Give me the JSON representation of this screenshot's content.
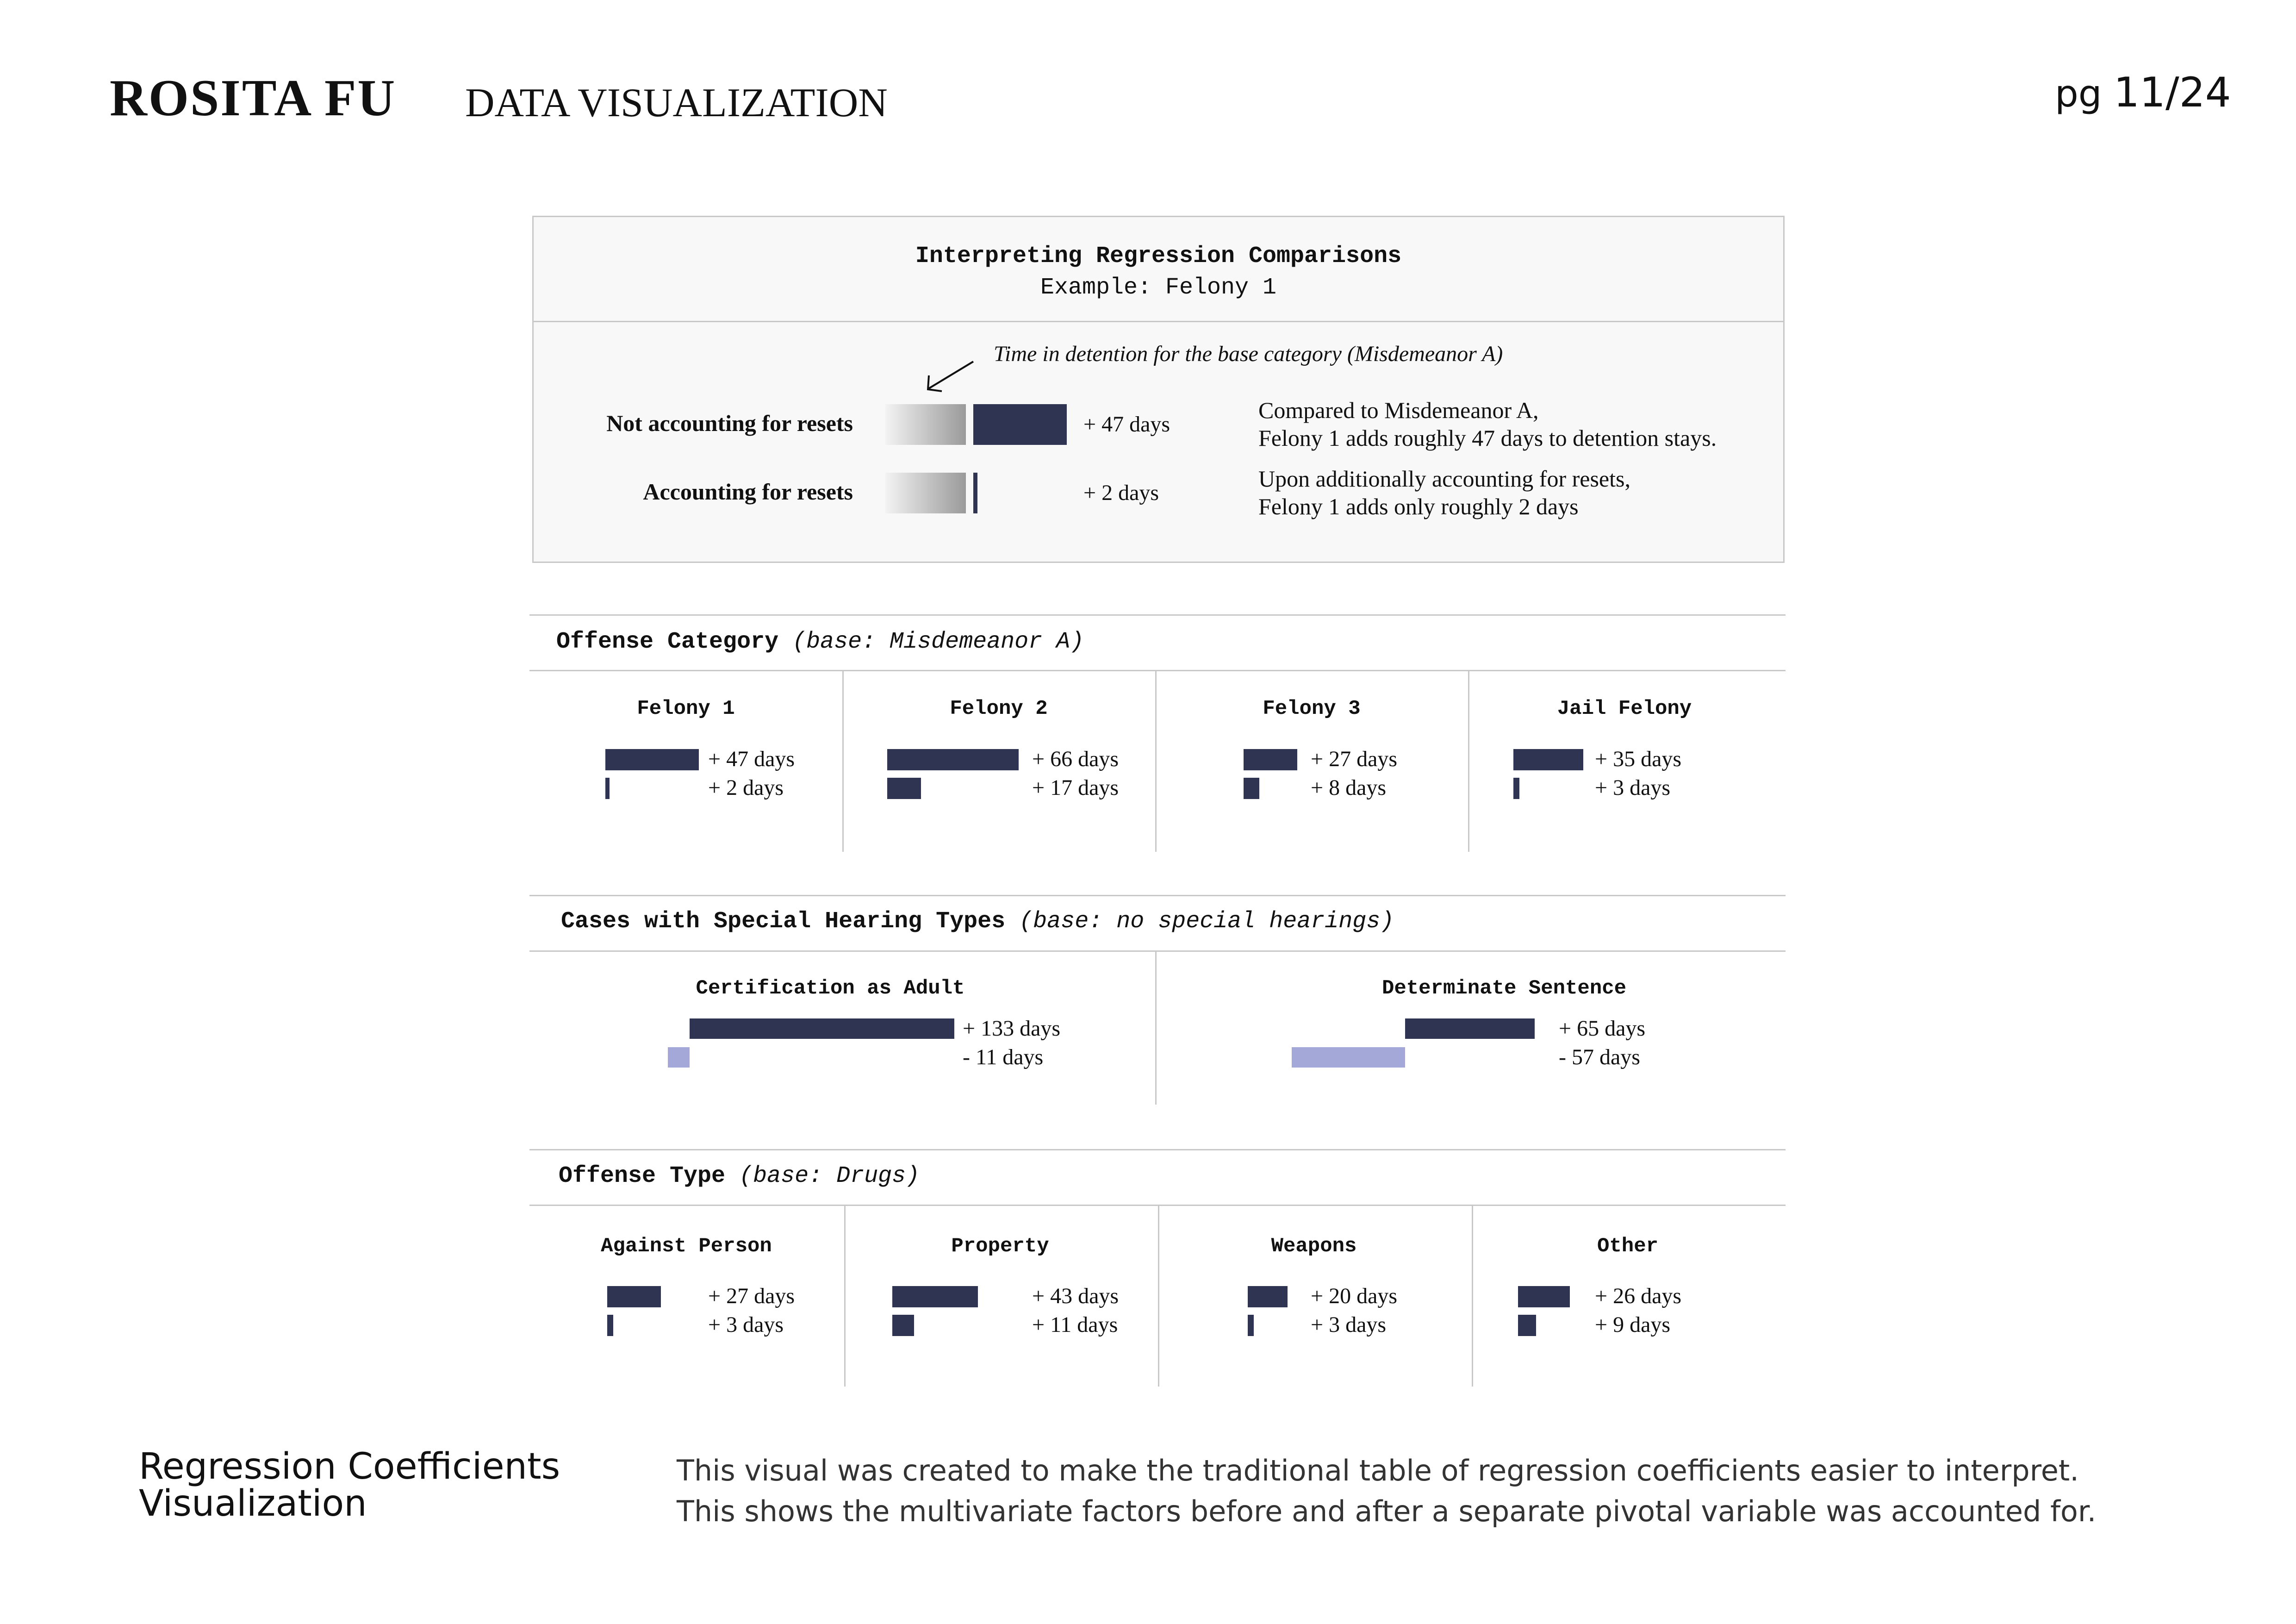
{
  "header": {
    "author": "ROSITA FU",
    "subject": "DATA VISUALIZATION",
    "page_prefix": "pg",
    "page_number": "11/24"
  },
  "explanation": {
    "title": "Interpreting Regression Comparisons",
    "example": "Example: Felony 1",
    "annotation": "Time in detention for the base category (Misdemeanor A)",
    "rows": [
      {
        "label": "Not accounting for resets",
        "value_label": "+ 47 days",
        "value": 47,
        "note_line1": "Compared to Misdemeanor A,",
        "note_line2": "Felony 1 adds roughly 47 days to detention stays."
      },
      {
        "label": "Accounting for resets",
        "value_label": "+ 2 days",
        "value": 2,
        "note_line1": "Upon additionally accounting for resets,",
        "note_line2": "Felony 1 adds only roughly 2 days"
      }
    ]
  },
  "sections": {
    "offense_category": {
      "title": "Offense Category",
      "base": "(base: Misdemeanor A)"
    },
    "special_hearing": {
      "title": "Cases with Special Hearing Types",
      "base": "(base: no special hearings)"
    },
    "offense_type": {
      "title": "Offense Type",
      "base": "(base: Drugs)"
    }
  },
  "chart_data": [
    {
      "type": "bar",
      "title": "Offense Category",
      "base": "Misdemeanor A",
      "categories": [
        "Felony 1",
        "Felony 2",
        "Felony 3",
        "Jail Felony"
      ],
      "series": [
        {
          "values": [
            47,
            66,
            27,
            35
          ],
          "labels": [
            "+ 47 days",
            "+ 66 days",
            "+ 27 days",
            "+ 35 days"
          ]
        },
        {
          "values": [
            2,
            17,
            8,
            3
          ],
          "labels": [
            "+  2 days",
            "+ 17 days",
            "+ 8 days",
            "+ 3 days"
          ]
        }
      ]
    },
    {
      "type": "bar",
      "title": "Cases with Special Hearing Types",
      "base": "no special hearings",
      "categories": [
        "Certification as Adult",
        "Determinate Sentence"
      ],
      "series": [
        {
          "values": [
            133,
            65
          ],
          "labels": [
            "+ 133 days",
            "+ 65 days"
          ]
        },
        {
          "values": [
            -11,
            -57
          ],
          "labels": [
            "- 11 days",
            "- 57 days"
          ]
        }
      ]
    },
    {
      "type": "bar",
      "title": "Offense Type",
      "base": "Drugs",
      "categories": [
        "Against Person",
        "Property",
        "Weapons",
        "Other"
      ],
      "series": [
        {
          "values": [
            27,
            43,
            20,
            26
          ],
          "labels": [
            "+ 27 days",
            "+ 43 days",
            "+ 20 days",
            "+ 26 days"
          ]
        },
        {
          "values": [
            3,
            11,
            3,
            9
          ],
          "labels": [
            "+ 3 days",
            "+ 11 days",
            "+ 3 days",
            "+ 9 days"
          ]
        }
      ]
    }
  ],
  "footer": {
    "title_line1": "Regression Coefficients",
    "title_line2": "Visualization",
    "description_line1": "This visual was created to make the traditional table of regression coefficients easier to interpret.",
    "description_line2": "This shows the multivariate factors before and after a separate pivotal variable was accounted for."
  }
}
